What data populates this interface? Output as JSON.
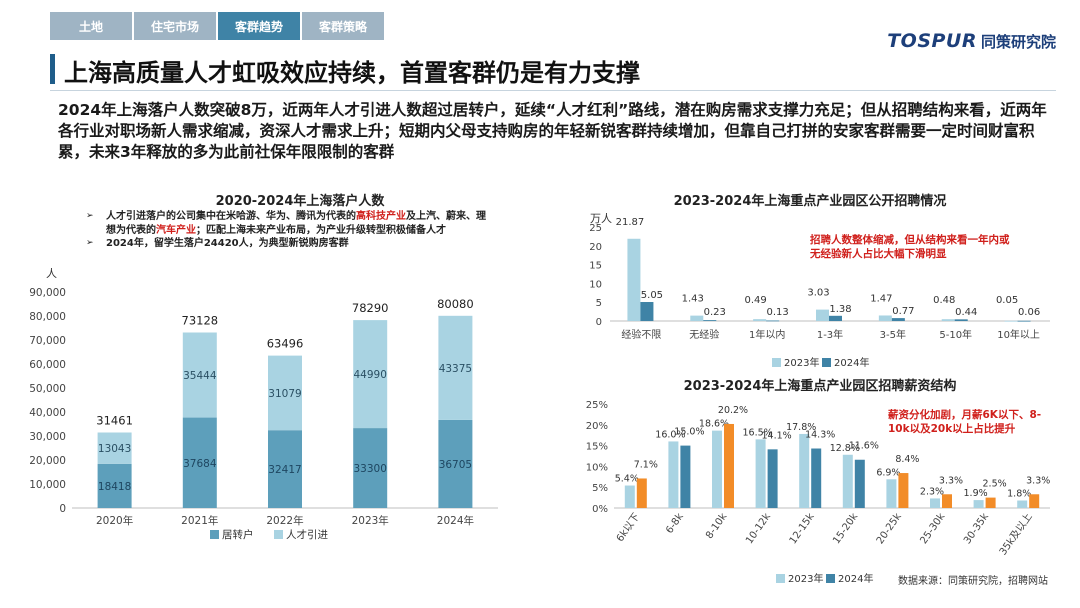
{
  "nav": {
    "tabs": [
      "土地",
      "住宅市场",
      "客群趋势",
      "客群策略"
    ],
    "active_index": 2
  },
  "logo": {
    "wordmark": "TOSPUR",
    "cn": "同策研究院"
  },
  "page_title": "上海高质量人才虹吸效应持续，首置客群仍是有力支撑",
  "summary": "2024年上海落户人数突破8万，近两年人才引进人数超过居转户，延续“人才红利”路线，潜在购房需求支撑力充足；但从招聘结构来看，近两年各行业对职场新人需求缩减，资深人才需求上升；短期内父母支持购房的年轻新锐客群持续增加，但靠自己打拼的安家客群需要一定时间财富积累，未来3年释放的多为此前社保年限限制的客群",
  "left_chart": {
    "title": "2020-2024年上海落户人数",
    "notes": {
      "n1_a": "人才引进落户的公司集中在米哈游、华为、腾讯为代表的",
      "n1_b": "高科技产业",
      "n1_c": "及上汽、蔚来、理想为代表的",
      "n1_d": "汽车产业",
      "n1_e": "；匹配上海未来产业布局，为产业升级转型积极储备人才",
      "n2": "2024年，留学生落户24420人，为典型新锐购房客群"
    },
    "unit": "人"
  },
  "right_top": {
    "title": "2023-2024年上海重点产业园区公开招聘情况",
    "unit": "万人",
    "annotation": "招聘人数整体缩减，但从结构来看一年内或无经验新人占比大幅下滑明显"
  },
  "right_bottom": {
    "title": "2023-2024年上海重点产业园区招聘薪资结构",
    "annotation": "薪资分化加剧，月薪6K以下、8-10k以及20k以上占比提升"
  },
  "source": "数据来源：同策研究院，招聘网站",
  "chart_data": [
    {
      "type": "bar",
      "stacked": true,
      "categories": [
        "2020年",
        "2021年",
        "2022年",
        "2023年",
        "2024年"
      ],
      "series": [
        {
          "name": "居转户",
          "values": [
            18418,
            37684,
            32417,
            33300,
            36705
          ],
          "color": "#5d9fbb"
        },
        {
          "name": "人才引进",
          "values": [
            13043,
            35444,
            31079,
            44990,
            43375
          ],
          "color": "#a9d3e2"
        }
      ],
      "totals": [
        31461,
        73128,
        63496,
        78290,
        80080
      ],
      "ylim": [
        0,
        90000
      ],
      "yticks": [
        "0",
        "10,000",
        "20,000",
        "30,000",
        "40,000",
        "50,000",
        "60,000",
        "70,000",
        "80,000",
        "90,000"
      ],
      "ylabel": "人",
      "legend": "bottom",
      "grid": false
    },
    {
      "type": "bar",
      "categories": [
        "经验不限",
        "无经验",
        "1年以内",
        "1-3年",
        "3-5年",
        "5-10年",
        "10年以上"
      ],
      "series": [
        {
          "name": "2023年",
          "values": [
            21.87,
            1.43,
            0.49,
            3.03,
            1.47,
            0.48,
            0.05
          ],
          "color": "#a9d3e2"
        },
        {
          "name": "2024年",
          "values": [
            5.05,
            0.23,
            0.13,
            1.38,
            0.77,
            0.44,
            0.06
          ],
          "color": "#3f83a6"
        }
      ],
      "labels": [
        [
          "21.87",
          "1.43",
          "0.49",
          "3.03",
          "1.47",
          "0.48",
          "0.05"
        ],
        [
          "5.05",
          "0.23",
          "0.13",
          "1.38",
          "0.77",
          "0.44",
          "0.06"
        ]
      ],
      "ylim": [
        0,
        25
      ],
      "yticks": [
        "0",
        "5",
        "10",
        "15",
        "20",
        "25"
      ],
      "ylabel": "万人",
      "legend": "bottom",
      "grid": false
    },
    {
      "type": "bar",
      "categories": [
        "6k以下",
        "6-8k",
        "8-10k",
        "10-12k",
        "12-15k",
        "15-20k",
        "20-25k",
        "25-30k",
        "30-35k",
        "35k及以上"
      ],
      "series": [
        {
          "name": "2023年",
          "values": [
            5.4,
            16.0,
            18.6,
            16.5,
            17.8,
            12.8,
            6.9,
            2.3,
            1.9,
            1.8
          ],
          "color": "#a9d3e2"
        },
        {
          "name": "2024年",
          "values": [
            7.1,
            15.0,
            20.2,
            14.1,
            14.3,
            11.6,
            8.4,
            3.3,
            2.5,
            3.3
          ],
          "color": "#3f83a6"
        }
      ],
      "highlight_color": "#f28c28",
      "highlight_indices": [
        0,
        2,
        6,
        7,
        8,
        9
      ],
      "labels": [
        [
          "5.4%",
          "16.0%",
          "18.6%",
          "16.5%",
          "17.8%",
          "12.8%",
          "6.9%",
          "2.3%",
          "1.9%",
          "1.8%"
        ],
        [
          "7.1%",
          "15.0%",
          "20.2%",
          "14.1%",
          "14.3%",
          "11.6%",
          "8.4%",
          "3.3%",
          "2.5%",
          "3.3%"
        ]
      ],
      "ylim": [
        0,
        25
      ],
      "yticks": [
        "0%",
        "5%",
        "10%",
        "15%",
        "20%",
        "25%"
      ],
      "legend": "bottom",
      "grid": false
    }
  ]
}
